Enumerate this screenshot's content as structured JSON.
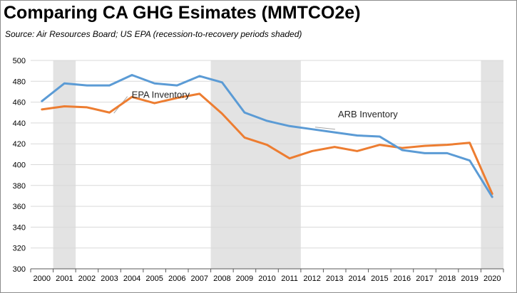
{
  "title": "Comparing CA GHG Esimates (MMTCO2e)",
  "subtitle": "Source:  Air Resources Board; US EPA (recession-to-recovery periods shaded)",
  "chart_data": {
    "type": "line",
    "title": "Comparing CA GHG Esimates (MMTCO2e)",
    "subtitle": "Source:  Air Resources Board; US EPA (recession-to-recovery periods shaded)",
    "xlabel": "",
    "ylabel": "",
    "x": [
      "2000",
      "2001",
      "2002",
      "2003",
      "2004",
      "2005",
      "2006",
      "2007",
      "2008",
      "2009",
      "2010",
      "2011",
      "2012",
      "2013",
      "2014",
      "2015",
      "2016",
      "2017",
      "2018",
      "2019",
      "2020"
    ],
    "ylim": [
      300,
      500
    ],
    "yticks": [
      300,
      320,
      340,
      360,
      380,
      400,
      420,
      440,
      460,
      480,
      500
    ],
    "grid": true,
    "legend": "none (series labeled directly with annotations)",
    "shaded_periods": [
      [
        "2000.5",
        "2001.5"
      ],
      [
        "2007.5",
        "2011.5"
      ],
      [
        "2019.5",
        "2020.5"
      ]
    ],
    "series": [
      {
        "name": "ARB Inventory",
        "color": "#5b9bd5",
        "values": [
          461,
          478,
          476,
          476,
          486,
          478,
          476,
          485,
          479,
          450,
          442,
          437,
          434,
          431,
          428,
          427,
          414,
          411,
          411,
          404,
          369
        ]
      },
      {
        "name": "EPA Inventory",
        "color": "#ed7d31",
        "values": [
          453,
          456,
          455,
          450,
          465,
          459,
          464,
          468,
          449,
          426,
          419,
          406,
          413,
          417,
          413,
          419,
          416,
          418,
          419,
          421,
          372
        ]
      }
    ],
    "annotations": [
      {
        "text": "ARB Inventory",
        "x": "2012.2",
        "y": 436
      },
      {
        "text": "EPA Inventory",
        "x": "2003.1",
        "y": 449
      }
    ]
  }
}
